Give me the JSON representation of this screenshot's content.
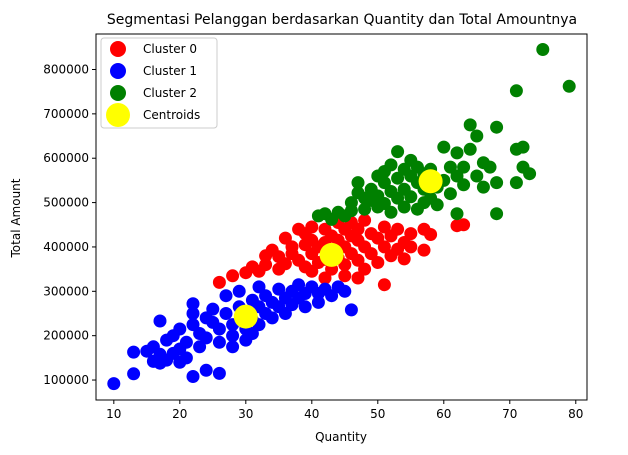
{
  "chart_data": {
    "type": "scatter",
    "title": "Segmentasi Pelanggan berdasarkan Quantity dan Total Amountnya",
    "xlabel": "Quantity",
    "ylabel": "Total Amount",
    "xlim": [
      7.3,
      81.7
    ],
    "ylim": [
      55000,
      880000
    ],
    "xticks": [
      10,
      20,
      30,
      40,
      50,
      60,
      70,
      80
    ],
    "yticks": [
      100000,
      200000,
      300000,
      400000,
      500000,
      600000,
      700000,
      800000
    ],
    "grid": false,
    "legend": {
      "placement": "upper-left",
      "entries": [
        "Cluster 0",
        "Cluster 1",
        "Cluster 2",
        "Centroids"
      ]
    },
    "series": [
      {
        "name": "Cluster 0",
        "color": "#ff0000",
        "points": [
          [
            26,
            320000
          ],
          [
            28,
            335000
          ],
          [
            30,
            342000
          ],
          [
            31,
            355000
          ],
          [
            32,
            345000
          ],
          [
            33,
            380000
          ],
          [
            33,
            360000
          ],
          [
            34,
            393000
          ],
          [
            35,
            350000
          ],
          [
            35,
            378000
          ],
          [
            36,
            362000
          ],
          [
            36,
            420000
          ],
          [
            37,
            400000
          ],
          [
            37,
            385000
          ],
          [
            38,
            440000
          ],
          [
            38,
            370000
          ],
          [
            39,
            430000
          ],
          [
            39,
            405000
          ],
          [
            39,
            355000
          ],
          [
            40,
            445000
          ],
          [
            40,
            415000
          ],
          [
            40,
            385000
          ],
          [
            40,
            345000
          ],
          [
            41,
            400000
          ],
          [
            41,
            365000
          ],
          [
            42,
            410000
          ],
          [
            42,
            440000
          ],
          [
            42,
            372000
          ],
          [
            42,
            330000
          ],
          [
            43,
            425000
          ],
          [
            43,
            395000
          ],
          [
            43,
            350000
          ],
          [
            44,
            455000
          ],
          [
            44,
            415000
          ],
          [
            44,
            375000
          ],
          [
            45,
            440000
          ],
          [
            45,
            400000
          ],
          [
            45,
            360000
          ],
          [
            45,
            335000
          ],
          [
            46,
            455000
          ],
          [
            46,
            425000
          ],
          [
            46,
            385000
          ],
          [
            47,
            440000
          ],
          [
            47,
            415000
          ],
          [
            47,
            370000
          ],
          [
            47,
            330000
          ],
          [
            48,
            460000
          ],
          [
            48,
            400000
          ],
          [
            48,
            350000
          ],
          [
            49,
            430000
          ],
          [
            49,
            385000
          ],
          [
            50,
            420000
          ],
          [
            50,
            365000
          ],
          [
            51,
            445000
          ],
          [
            51,
            400000
          ],
          [
            51,
            315000
          ],
          [
            52,
            380000
          ],
          [
            52,
            425000
          ],
          [
            53,
            440000
          ],
          [
            53,
            395000
          ],
          [
            54,
            410000
          ],
          [
            54,
            373000
          ],
          [
            55,
            430000
          ],
          [
            55,
            400000
          ],
          [
            57,
            440000
          ],
          [
            57,
            393000
          ],
          [
            58,
            428000
          ],
          [
            62,
            448000
          ],
          [
            63,
            450000
          ]
        ]
      },
      {
        "name": "Cluster 1",
        "color": "#0000ff",
        "points": [
          [
            10,
            92000
          ],
          [
            13,
            114000
          ],
          [
            13,
            163000
          ],
          [
            15,
            165000
          ],
          [
            16,
            175000
          ],
          [
            16,
            142000
          ],
          [
            17,
            233000
          ],
          [
            17,
            158000
          ],
          [
            17,
            138000
          ],
          [
            18,
            190000
          ],
          [
            18,
            145000
          ],
          [
            19,
            200000
          ],
          [
            19,
            160000
          ],
          [
            20,
            215000
          ],
          [
            20,
            170000
          ],
          [
            20,
            140000
          ],
          [
            21,
            185000
          ],
          [
            21,
            150000
          ],
          [
            22,
            272000
          ],
          [
            22,
            250000
          ],
          [
            22,
            225000
          ],
          [
            22,
            108000
          ],
          [
            23,
            205000
          ],
          [
            23,
            175000
          ],
          [
            24,
            240000
          ],
          [
            24,
            195000
          ],
          [
            24,
            122000
          ],
          [
            25,
            230000
          ],
          [
            25,
            260000
          ],
          [
            26,
            215000
          ],
          [
            26,
            185000
          ],
          [
            26,
            115000
          ],
          [
            27,
            250000
          ],
          [
            27,
            290000
          ],
          [
            28,
            225000
          ],
          [
            28,
            200000
          ],
          [
            28,
            175000
          ],
          [
            29,
            265000
          ],
          [
            29,
            300000
          ],
          [
            30,
            245000
          ],
          [
            30,
            215000
          ],
          [
            30,
            190000
          ],
          [
            31,
            280000
          ],
          [
            31,
            235000
          ],
          [
            31,
            205000
          ],
          [
            32,
            310000
          ],
          [
            32,
            265000
          ],
          [
            32,
            225000
          ],
          [
            33,
            290000
          ],
          [
            33,
            250000
          ],
          [
            34,
            275000
          ],
          [
            34,
            240000
          ],
          [
            35,
            305000
          ],
          [
            35,
            265000
          ],
          [
            36,
            285000
          ],
          [
            36,
            250000
          ],
          [
            37,
            300000
          ],
          [
            37,
            270000
          ],
          [
            38,
            315000
          ],
          [
            38,
            285000
          ],
          [
            39,
            295000
          ],
          [
            39,
            265000
          ],
          [
            40,
            310000
          ],
          [
            41,
            295000
          ],
          [
            41,
            275000
          ],
          [
            42,
            305000
          ],
          [
            43,
            290000
          ],
          [
            44,
            310000
          ],
          [
            45,
            300000
          ],
          [
            46,
            258000
          ]
        ]
      },
      {
        "name": "Cluster 2",
        "color": "#008000",
        "points": [
          [
            41,
            470000
          ],
          [
            42,
            475000
          ],
          [
            43,
            462000
          ],
          [
            44,
            478000
          ],
          [
            45,
            470000
          ],
          [
            46,
            500000
          ],
          [
            46,
            482000
          ],
          [
            47,
            522000
          ],
          [
            47,
            545000
          ],
          [
            48,
            510000
          ],
          [
            48,
            485000
          ],
          [
            49,
            530000
          ],
          [
            49,
            505000
          ],
          [
            50,
            560000
          ],
          [
            50,
            515000
          ],
          [
            50,
            490000
          ],
          [
            51,
            545000
          ],
          [
            51,
            570000
          ],
          [
            51,
            498000
          ],
          [
            52,
            525000
          ],
          [
            52,
            585000
          ],
          [
            52,
            478000
          ],
          [
            53,
            555000
          ],
          [
            53,
            510000
          ],
          [
            53,
            615000
          ],
          [
            54,
            575000
          ],
          [
            54,
            530000
          ],
          [
            54,
            490000
          ],
          [
            55,
            560000
          ],
          [
            55,
            595000
          ],
          [
            55,
            513000
          ],
          [
            56,
            545000
          ],
          [
            56,
            580000
          ],
          [
            56,
            485000
          ],
          [
            57,
            565000
          ],
          [
            57,
            530000
          ],
          [
            57,
            500000
          ],
          [
            58,
            575000
          ],
          [
            58,
            510000
          ],
          [
            59,
            535000
          ],
          [
            59,
            495000
          ],
          [
            60,
            550000
          ],
          [
            60,
            625000
          ],
          [
            61,
            580000
          ],
          [
            61,
            520000
          ],
          [
            62,
            612000
          ],
          [
            62,
            560000
          ],
          [
            62,
            475000
          ],
          [
            63,
            540000
          ],
          [
            63,
            580000
          ],
          [
            64,
            620000
          ],
          [
            64,
            675000
          ],
          [
            65,
            650000
          ],
          [
            65,
            560000
          ],
          [
            66,
            590000
          ],
          [
            66,
            535000
          ],
          [
            67,
            580000
          ],
          [
            68,
            670000
          ],
          [
            68,
            545000
          ],
          [
            68,
            475000
          ],
          [
            71,
            620000
          ],
          [
            71,
            545000
          ],
          [
            72,
            625000
          ],
          [
            72,
            580000
          ],
          [
            73,
            565000
          ],
          [
            71,
            752000
          ],
          [
            75,
            845000
          ],
          [
            79,
            762000
          ]
        ]
      },
      {
        "name": "Centroids",
        "color": "#ffff00",
        "points": [
          [
            43,
            382000
          ],
          [
            30,
            243000
          ],
          [
            58,
            548000
          ]
        ]
      }
    ]
  }
}
